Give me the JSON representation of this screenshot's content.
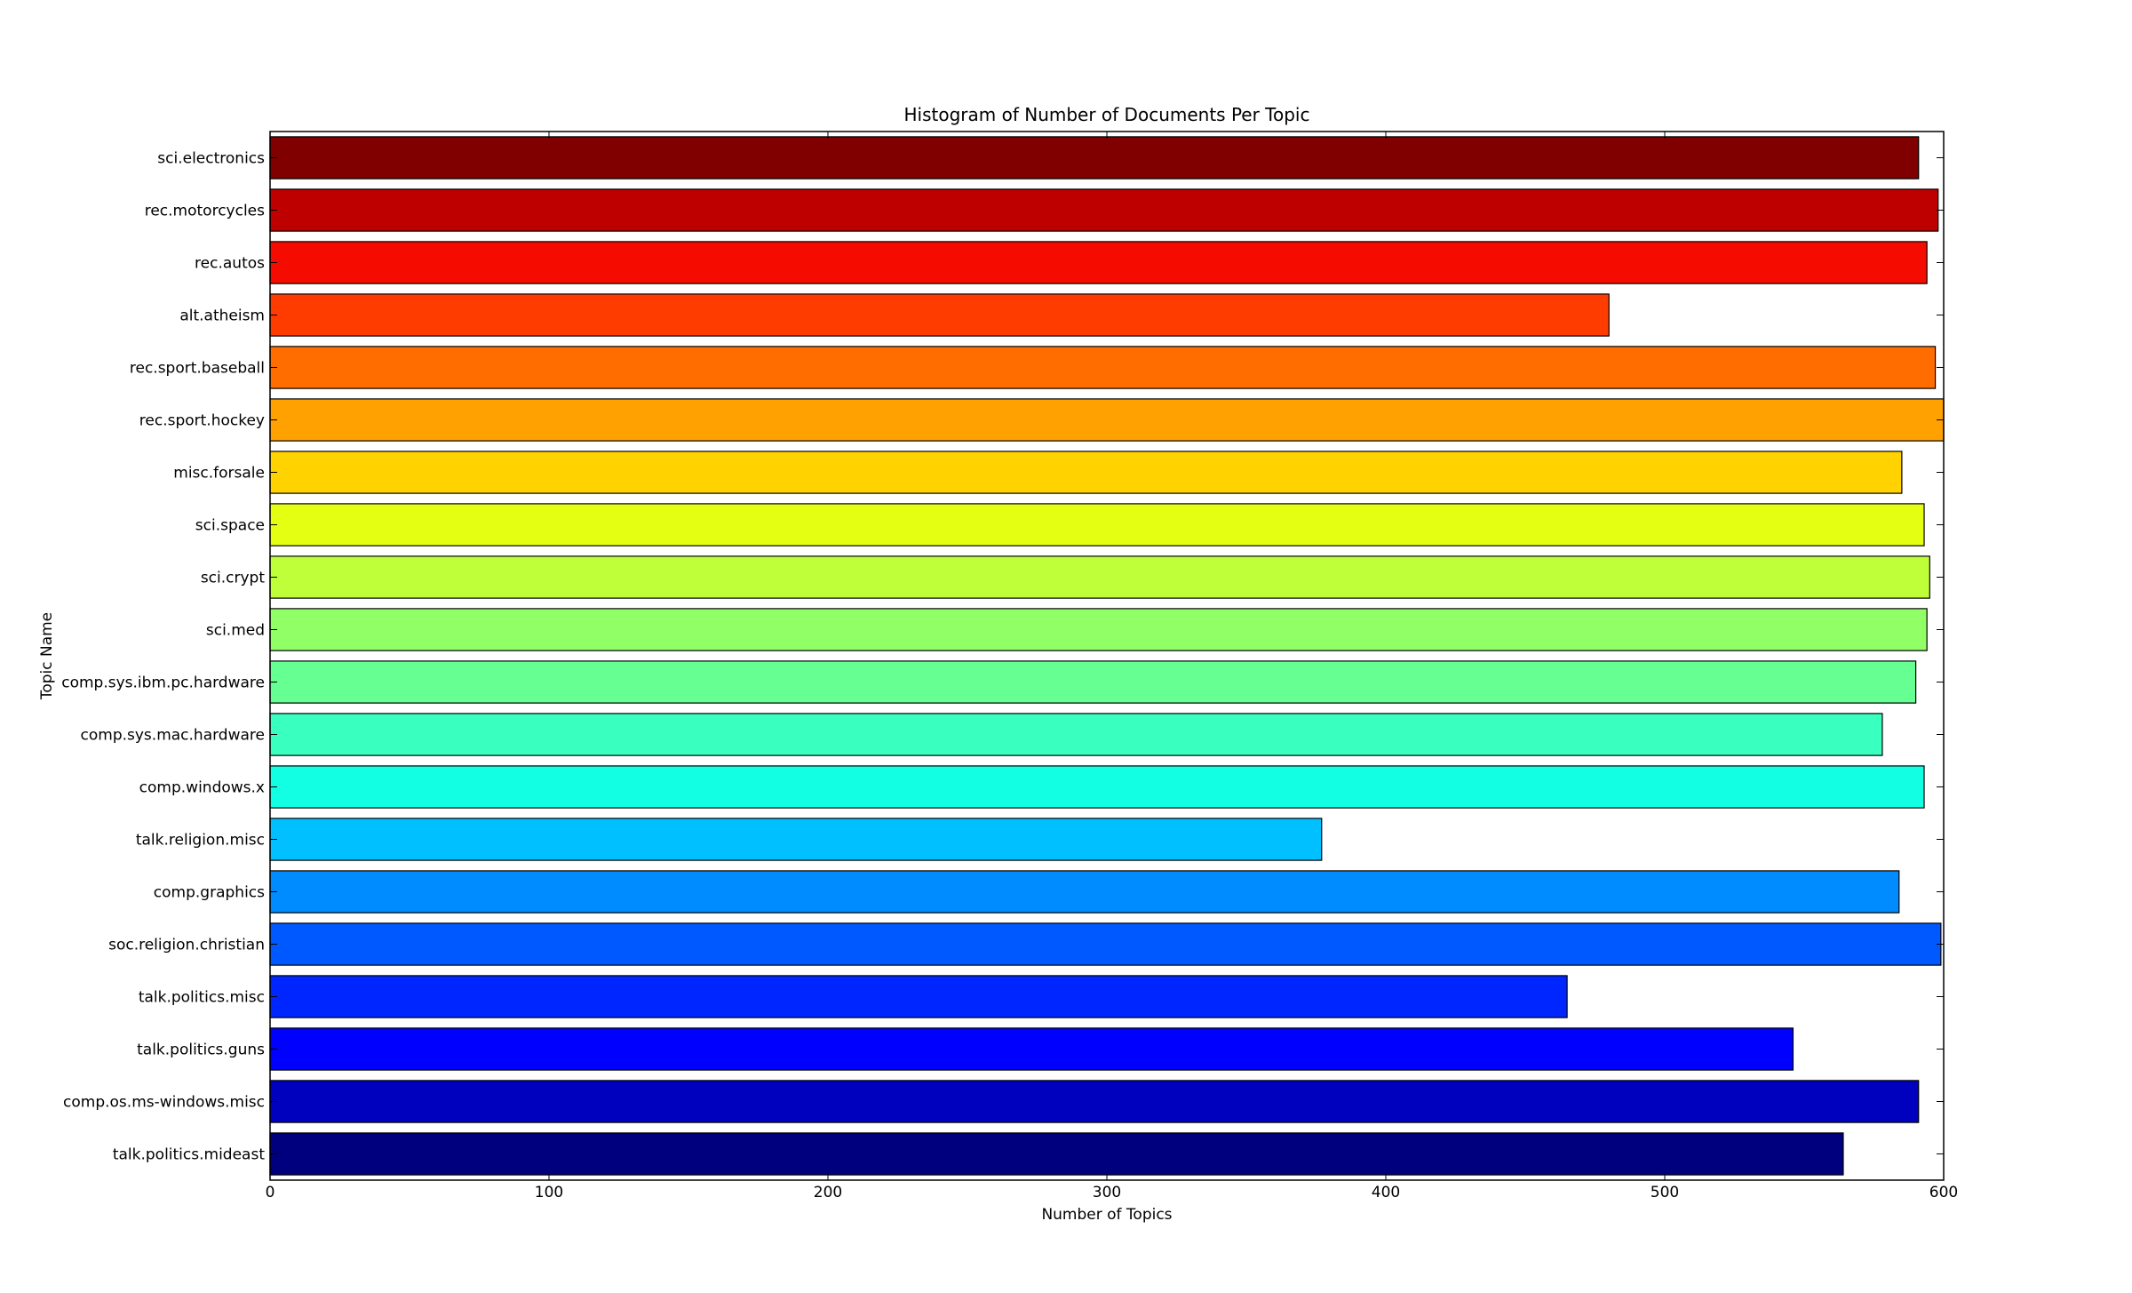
{
  "chart_data": {
    "type": "bar",
    "orientation": "horizontal",
    "title": "Histogram of Number of Documents Per Topic",
    "xlabel": "Number of Topics",
    "ylabel": "Topic Name",
    "xlim": [
      0,
      600
    ],
    "xticks": [
      0,
      100,
      200,
      300,
      400,
      500,
      600
    ],
    "grid": false,
    "categories": [
      "sci.electronics",
      "rec.motorcycles",
      "rec.autos",
      "alt.atheism",
      "rec.sport.baseball",
      "rec.sport.hockey",
      "misc.forsale",
      "sci.space",
      "sci.crypt",
      "sci.med",
      "comp.sys.ibm.pc.hardware",
      "comp.sys.mac.hardware",
      "comp.windows.x",
      "talk.religion.misc",
      "comp.graphics",
      "soc.religion.christian",
      "talk.politics.misc",
      "talk.politics.guns",
      "comp.os.ms-windows.misc",
      "talk.politics.mideast"
    ],
    "values": [
      591,
      598,
      594,
      480,
      597,
      600,
      585,
      593,
      595,
      594,
      590,
      578,
      593,
      377,
      584,
      599,
      465,
      546,
      591,
      564
    ],
    "colors": [
      "#800000",
      "#bf0000",
      "#f60b00",
      "#ff3c00",
      "#ff6d00",
      "#ffa100",
      "#ffd200",
      "#e4ff12",
      "#bfff39",
      "#91ff66",
      "#66ff91",
      "#39ffbf",
      "#12ffe4",
      "#00c0ff",
      "#008cff",
      "#0059ff",
      "#0026ff",
      "#0000ff",
      "#0000bf",
      "#00007f"
    ]
  }
}
